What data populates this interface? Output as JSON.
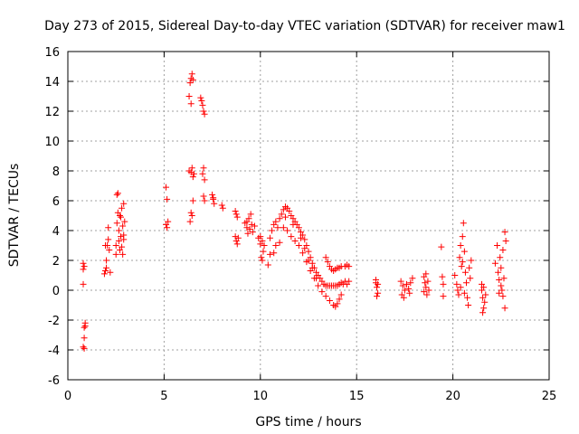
{
  "chart_data": {
    "type": "scatter",
    "title": "Day 273 of 2015, Sidereal Day-to-day VTEC variation (SDTVAR) for receiver maw1",
    "xlabel": "GPS time / hours",
    "ylabel": "SDTVAR / TECUs",
    "xlim": [
      0,
      25
    ],
    "ylim": [
      -6,
      16
    ],
    "xticks": [
      0,
      5,
      10,
      15,
      20,
      25
    ],
    "yticks": [
      -6,
      -4,
      -2,
      0,
      2,
      4,
      6,
      8,
      10,
      12,
      14,
      16
    ],
    "grid": true,
    "marker": "+",
    "color": "#ff0000",
    "series": [
      {
        "name": "SDTVAR",
        "points": [
          [
            0.8,
            0.4
          ],
          [
            0.8,
            1.4
          ],
          [
            0.8,
            1.8
          ],
          [
            0.85,
            1.6
          ],
          [
            0.85,
            -2.5
          ],
          [
            0.9,
            -2.2
          ],
          [
            0.85,
            -3.2
          ],
          [
            0.8,
            -3.8
          ],
          [
            0.85,
            -3.9
          ],
          [
            0.9,
            -2.4
          ],
          [
            1.9,
            1.1
          ],
          [
            1.95,
            1.3
          ],
          [
            2.0,
            1.5
          ],
          [
            2.0,
            2.0
          ],
          [
            2.05,
            3.0
          ],
          [
            2.1,
            3.4
          ],
          [
            2.1,
            4.2
          ],
          [
            2.15,
            2.7
          ],
          [
            2.2,
            1.2
          ],
          [
            1.95,
            3.0
          ],
          [
            2.5,
            2.4
          ],
          [
            2.5,
            3.0
          ],
          [
            2.55,
            4.5
          ],
          [
            2.6,
            5.2
          ],
          [
            2.6,
            6.5
          ],
          [
            2.65,
            4.0
          ],
          [
            2.7,
            5.0
          ],
          [
            2.7,
            2.7
          ],
          [
            2.75,
            3.6
          ],
          [
            2.75,
            4.9
          ],
          [
            2.8,
            5.5
          ],
          [
            2.85,
            4.3
          ],
          [
            2.85,
            2.4
          ],
          [
            2.9,
            3.7
          ],
          [
            2.9,
            5.8
          ],
          [
            2.95,
            4.6
          ],
          [
            2.55,
            6.4
          ],
          [
            2.65,
            3.3
          ],
          [
            2.8,
            2.9
          ],
          [
            2.9,
            3.4
          ],
          [
            5.1,
            6.9
          ],
          [
            5.15,
            6.1
          ],
          [
            5.1,
            4.4
          ],
          [
            5.15,
            4.2
          ],
          [
            5.2,
            4.6
          ],
          [
            6.3,
            13.0
          ],
          [
            6.35,
            13.9
          ],
          [
            6.4,
            14.2
          ],
          [
            6.4,
            12.5
          ],
          [
            6.45,
            14.5
          ],
          [
            6.5,
            14.1
          ],
          [
            6.4,
            7.9
          ],
          [
            6.45,
            8.2
          ],
          [
            6.5,
            7.6
          ],
          [
            6.45,
            5.0
          ],
          [
            6.5,
            6.0
          ],
          [
            6.35,
            4.6
          ],
          [
            6.4,
            5.2
          ],
          [
            6.55,
            7.8
          ],
          [
            6.3,
            8.0
          ],
          [
            6.9,
            12.9
          ],
          [
            6.95,
            12.7
          ],
          [
            7.0,
            12.4
          ],
          [
            7.05,
            12.0
          ],
          [
            7.1,
            11.8
          ],
          [
            7.0,
            7.8
          ],
          [
            7.05,
            8.2
          ],
          [
            7.1,
            7.4
          ],
          [
            7.05,
            6.3
          ],
          [
            7.1,
            6.0
          ],
          [
            7.5,
            6.4
          ],
          [
            7.55,
            6.1
          ],
          [
            7.6,
            5.8
          ],
          [
            7.55,
            6.2
          ],
          [
            8.0,
            5.7
          ],
          [
            8.05,
            5.5
          ],
          [
            8.7,
            5.3
          ],
          [
            8.75,
            5.1
          ],
          [
            8.8,
            4.9
          ],
          [
            8.7,
            3.6
          ],
          [
            8.75,
            3.3
          ],
          [
            8.8,
            3.1
          ],
          [
            8.85,
            3.5
          ],
          [
            9.2,
            4.5
          ],
          [
            9.3,
            4.2
          ],
          [
            9.4,
            4.8
          ],
          [
            9.5,
            5.1
          ],
          [
            9.35,
            3.8
          ],
          [
            9.45,
            4.1
          ],
          [
            9.6,
            3.9
          ],
          [
            9.7,
            4.3
          ],
          [
            9.3,
            4.6
          ],
          [
            9.55,
            4.4
          ],
          [
            9.9,
            3.5
          ],
          [
            10.0,
            3.1
          ],
          [
            10.05,
            2.2
          ],
          [
            10.1,
            2.0
          ],
          [
            10.15,
            2.6
          ],
          [
            10.0,
            3.6
          ],
          [
            10.1,
            3.3
          ],
          [
            10.2,
            3.0
          ],
          [
            10.5,
            3.5
          ],
          [
            10.6,
            4.0
          ],
          [
            10.7,
            4.4
          ],
          [
            10.8,
            4.6
          ],
          [
            10.9,
            4.2
          ],
          [
            11.0,
            4.8
          ],
          [
            11.1,
            5.1
          ],
          [
            11.2,
            5.4
          ],
          [
            11.3,
            5.6
          ],
          [
            11.4,
            5.5
          ],
          [
            11.5,
            5.3
          ],
          [
            11.6,
            5.0
          ],
          [
            11.7,
            4.8
          ],
          [
            11.8,
            4.6
          ],
          [
            11.9,
            4.4
          ],
          [
            12.0,
            4.2
          ],
          [
            12.1,
            3.9
          ],
          [
            12.2,
            3.7
          ],
          [
            12.3,
            3.4
          ],
          [
            12.4,
            3.0
          ],
          [
            12.5,
            2.6
          ],
          [
            12.6,
            2.2
          ],
          [
            12.7,
            1.8
          ],
          [
            12.8,
            1.5
          ],
          [
            12.9,
            1.2
          ],
          [
            13.0,
            1.0
          ],
          [
            13.1,
            0.8
          ],
          [
            13.2,
            0.6
          ],
          [
            13.3,
            0.4
          ],
          [
            13.4,
            0.3
          ],
          [
            13.5,
            0.3
          ],
          [
            13.6,
            0.3
          ],
          [
            13.7,
            0.3
          ],
          [
            13.8,
            0.3
          ],
          [
            13.9,
            0.3
          ],
          [
            14.0,
            0.3
          ],
          [
            14.1,
            0.4
          ],
          [
            14.2,
            0.5
          ],
          [
            14.3,
            0.4
          ],
          [
            14.4,
            0.6
          ],
          [
            11.2,
            4.2
          ],
          [
            11.4,
            4.0
          ],
          [
            11.6,
            3.6
          ],
          [
            11.8,
            3.3
          ],
          [
            12.0,
            3.0
          ],
          [
            12.2,
            2.5
          ],
          [
            12.4,
            1.9
          ],
          [
            12.6,
            1.3
          ],
          [
            12.8,
            0.8
          ],
          [
            13.0,
            0.3
          ],
          [
            13.2,
            -0.1
          ],
          [
            13.4,
            -0.4
          ],
          [
            13.6,
            -0.7
          ],
          [
            13.8,
            -1.0
          ],
          [
            13.9,
            -1.1
          ],
          [
            14.0,
            -0.9
          ],
          [
            14.1,
            -0.6
          ],
          [
            14.2,
            -0.3
          ],
          [
            10.7,
            2.5
          ],
          [
            10.8,
            3.0
          ],
          [
            11.0,
            3.2
          ],
          [
            11.3,
            4.9
          ],
          [
            11.7,
            4.4
          ],
          [
            12.1,
            3.5
          ],
          [
            12.3,
            2.8
          ],
          [
            12.5,
            2.0
          ],
          [
            12.7,
            1.5
          ],
          [
            12.9,
            0.8
          ],
          [
            13.4,
            2.2
          ],
          [
            13.5,
            1.9
          ],
          [
            13.6,
            1.6
          ],
          [
            13.7,
            1.4
          ],
          [
            13.8,
            1.3
          ],
          [
            13.9,
            1.4
          ],
          [
            14.0,
            1.5
          ],
          [
            14.1,
            1.5
          ],
          [
            14.2,
            1.6
          ],
          [
            14.4,
            1.6
          ],
          [
            14.5,
            1.7
          ],
          [
            14.6,
            1.6
          ],
          [
            14.5,
            0.4
          ],
          [
            14.6,
            0.6
          ],
          [
            10.4,
            1.7
          ],
          [
            10.5,
            2.4
          ],
          [
            16.0,
            0.5
          ],
          [
            16.05,
            0.2
          ],
          [
            16.1,
            -0.2
          ],
          [
            16.0,
            0.7
          ],
          [
            16.1,
            0.4
          ],
          [
            16.05,
            -0.4
          ],
          [
            17.3,
            0.6
          ],
          [
            17.4,
            0.3
          ],
          [
            17.5,
            0.0
          ],
          [
            17.35,
            -0.3
          ],
          [
            17.45,
            -0.5
          ],
          [
            17.6,
            0.4
          ],
          [
            17.7,
            0.1
          ],
          [
            17.8,
            0.5
          ],
          [
            17.75,
            -0.2
          ],
          [
            17.9,
            0.8
          ],
          [
            18.5,
            0.9
          ],
          [
            18.55,
            0.5
          ],
          [
            18.6,
            0.2
          ],
          [
            18.5,
            -0.1
          ],
          [
            18.65,
            -0.3
          ],
          [
            18.7,
            0.6
          ],
          [
            18.6,
            1.1
          ],
          [
            18.75,
            0.0
          ],
          [
            19.4,
            2.9
          ],
          [
            19.45,
            0.9
          ],
          [
            19.5,
            0.4
          ],
          [
            19.5,
            -0.4
          ],
          [
            20.1,
            1.0
          ],
          [
            20.2,
            0.4
          ],
          [
            20.25,
            0.0
          ],
          [
            20.3,
            -0.3
          ],
          [
            20.35,
            2.2
          ],
          [
            20.4,
            3.0
          ],
          [
            20.45,
            1.6
          ],
          [
            20.5,
            3.6
          ],
          [
            20.55,
            4.5
          ],
          [
            20.6,
            2.6
          ],
          [
            20.65,
            1.2
          ],
          [
            20.7,
            0.5
          ],
          [
            20.75,
            -0.5
          ],
          [
            20.8,
            -1.0
          ],
          [
            20.85,
            1.5
          ],
          [
            20.9,
            0.8
          ],
          [
            20.95,
            2.0
          ],
          [
            20.4,
            0.2
          ],
          [
            20.6,
            -0.2
          ],
          [
            20.5,
            1.9
          ],
          [
            21.5,
            0.0
          ],
          [
            21.55,
            -0.5
          ],
          [
            21.6,
            -1.2
          ],
          [
            21.65,
            -0.8
          ],
          [
            21.5,
            0.4
          ],
          [
            21.7,
            -0.3
          ],
          [
            21.6,
            0.2
          ],
          [
            21.55,
            -1.5
          ],
          [
            22.2,
            1.8
          ],
          [
            22.3,
            3.0
          ],
          [
            22.35,
            1.2
          ],
          [
            22.4,
            0.7
          ],
          [
            22.45,
            2.2
          ],
          [
            22.5,
            1.5
          ],
          [
            22.55,
            0.0
          ],
          [
            22.6,
            -0.4
          ],
          [
            22.65,
            0.8
          ],
          [
            22.7,
            -1.2
          ],
          [
            22.75,
            3.3
          ],
          [
            22.7,
            3.9
          ],
          [
            22.6,
            2.7
          ],
          [
            22.5,
            0.3
          ],
          [
            22.4,
            -0.2
          ]
        ]
      }
    ]
  }
}
